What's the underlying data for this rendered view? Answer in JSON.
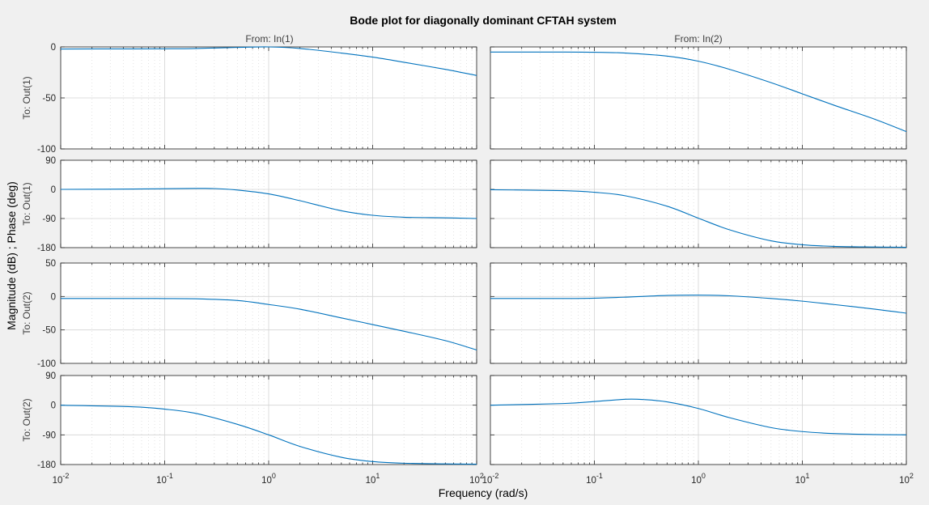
{
  "chart_data": {
    "type": "line",
    "title": "Bode plot for diagonally dominant CFTAH system",
    "xlabel": "Frequency  (rad/s)",
    "ylabel": "Magnitude (dB) ; Phase (deg)",
    "x_scale": "log",
    "xlim": [
      0.01,
      100
    ],
    "x_ticks": [
      {
        "base": "10",
        "exp": "-2"
      },
      {
        "base": "10",
        "exp": "-1"
      },
      {
        "base": "10",
        "exp": "0"
      },
      {
        "base": "10",
        "exp": "1"
      },
      {
        "base": "10",
        "exp": "2"
      }
    ],
    "grid": true,
    "color": "#0072bd",
    "columns": [
      "From: In(1)",
      "From: In(2)"
    ],
    "rows": [
      {
        "label": "To: Out(1)",
        "quantity": "magnitude",
        "unit": "dB",
        "ylim": [
          -100,
          0
        ],
        "yticks": [
          "0",
          "-50",
          "-100"
        ]
      },
      {
        "label": "To: Out(1)",
        "quantity": "phase",
        "unit": "deg",
        "ylim": [
          -180,
          90
        ],
        "yticks": [
          "90",
          "0",
          "-90",
          "-180"
        ]
      },
      {
        "label": "To: Out(2)",
        "quantity": "magnitude",
        "unit": "dB",
        "ylim": [
          -100,
          50
        ],
        "yticks": [
          "50",
          "0",
          "-50",
          "-100"
        ]
      },
      {
        "label": "To: Out(2)",
        "quantity": "phase",
        "unit": "deg",
        "ylim": [
          -180,
          90
        ],
        "yticks": [
          "90",
          "0",
          "-90",
          "-180"
        ]
      }
    ],
    "series": [
      {
        "row": 0,
        "col": 0,
        "x": [
          0.01,
          0.05,
          0.1,
          0.2,
          0.5,
          1,
          2,
          5,
          10,
          20,
          50,
          100
        ],
        "y": [
          -2,
          -1.9,
          -1.8,
          -1.5,
          -0.5,
          0,
          -1.5,
          -6,
          -10,
          -15,
          -22,
          -28
        ]
      },
      {
        "row": 0,
        "col": 1,
        "x": [
          0.01,
          0.05,
          0.1,
          0.2,
          0.5,
          1,
          2,
          5,
          10,
          20,
          50,
          100
        ],
        "y": [
          -5,
          -5,
          -5.2,
          -6,
          -9,
          -14,
          -22,
          -35,
          -46,
          -57,
          -71,
          -83
        ]
      },
      {
        "row": 1,
        "col": 0,
        "x": [
          0.01,
          0.05,
          0.1,
          0.2,
          0.3,
          0.5,
          1,
          2,
          5,
          10,
          20,
          50,
          100
        ],
        "y": [
          0,
          1,
          2,
          3,
          2.5,
          -2,
          -14,
          -35,
          -66,
          -80,
          -86,
          -88,
          -90
        ]
      },
      {
        "row": 1,
        "col": 1,
        "x": [
          0.01,
          0.05,
          0.1,
          0.2,
          0.5,
          1,
          2,
          5,
          10,
          20,
          50,
          100
        ],
        "y": [
          -1,
          -4,
          -9,
          -20,
          -52,
          -89,
          -125,
          -159,
          -171,
          -176,
          -178,
          -179
        ]
      },
      {
        "row": 2,
        "col": 0,
        "x": [
          0.01,
          0.05,
          0.1,
          0.2,
          0.5,
          1,
          2,
          5,
          10,
          20,
          50,
          100
        ],
        "y": [
          -3,
          -3,
          -3.1,
          -3.5,
          -6,
          -12,
          -19,
          -32,
          -42,
          -52,
          -66,
          -80
        ]
      },
      {
        "row": 2,
        "col": 1,
        "x": [
          0.01,
          0.05,
          0.1,
          0.2,
          0.5,
          1,
          2,
          5,
          10,
          20,
          50,
          100
        ],
        "y": [
          -3,
          -3,
          -2.5,
          -1,
          1.5,
          2,
          1,
          -3,
          -7,
          -12,
          -19,
          -25
        ]
      },
      {
        "row": 3,
        "col": 0,
        "x": [
          0.01,
          0.05,
          0.1,
          0.2,
          0.5,
          1,
          2,
          5,
          10,
          20,
          50,
          100
        ],
        "y": [
          0,
          -5,
          -12,
          -25,
          -58,
          -90,
          -125,
          -158,
          -171,
          -176,
          -178,
          -179
        ]
      },
      {
        "row": 3,
        "col": 1,
        "x": [
          0.01,
          0.05,
          0.1,
          0.2,
          0.3,
          0.5,
          1,
          2,
          5,
          10,
          20,
          50,
          100
        ],
        "y": [
          0,
          5,
          11,
          18,
          17,
          10,
          -10,
          -38,
          -68,
          -80,
          -86,
          -89,
          -90
        ]
      }
    ]
  }
}
